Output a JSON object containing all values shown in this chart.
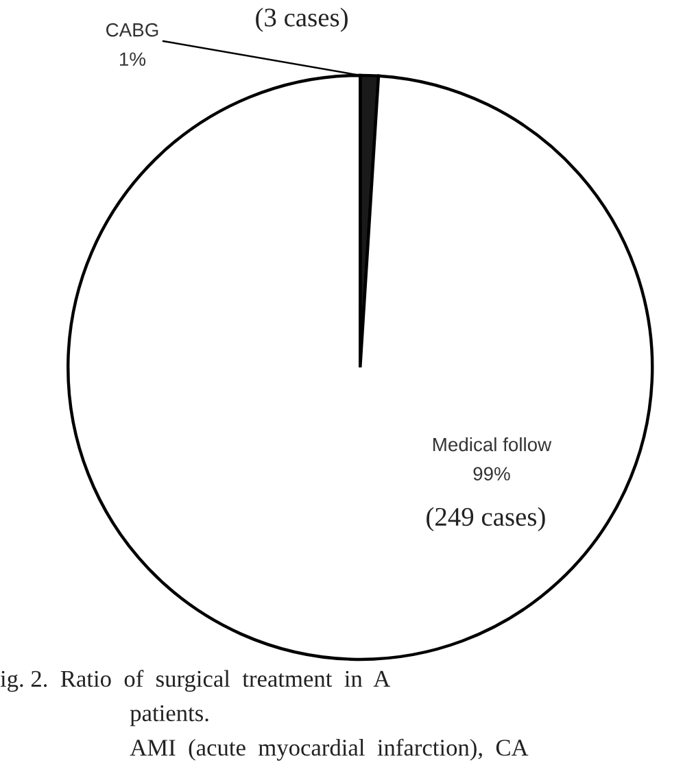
{
  "chart_data": {
    "type": "pie",
    "categories": [
      "CABG",
      "Medical follow"
    ],
    "values": [
      1,
      99
    ],
    "colors": [
      "#1a1a1a",
      "#ffffff"
    ],
    "value_labels": [
      "1%",
      "99%"
    ],
    "annotations": [
      "(3 cases)",
      "(249 cases)",
      "ig. 2.  Ratio  of  surgical  treatment  in  A",
      "patients.",
      "AMI  (acute  myocardial  infarction),  CA"
    ]
  }
}
